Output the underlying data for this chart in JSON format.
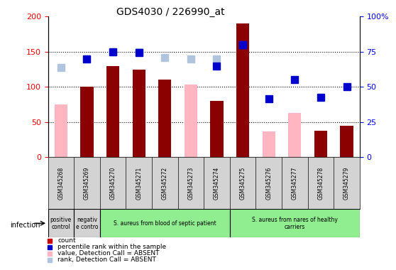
{
  "title": "GDS4030 / 226990_at",
  "samples": [
    "GSM345268",
    "GSM345269",
    "GSM345270",
    "GSM345271",
    "GSM345272",
    "GSM345273",
    "GSM345274",
    "GSM345275",
    "GSM345276",
    "GSM345277",
    "GSM345278",
    "GSM345279"
  ],
  "count_values": [
    null,
    100,
    130,
    125,
    110,
    null,
    80,
    190,
    null,
    null,
    38,
    45
  ],
  "absent_value": [
    75,
    null,
    null,
    null,
    null,
    103,
    null,
    null,
    37,
    63,
    null,
    null
  ],
  "absent_rank": [
    128,
    140,
    150,
    150,
    142,
    140,
    140,
    null,
    null,
    null,
    null,
    null
  ],
  "percentile_rank": [
    null,
    140,
    150,
    149,
    null,
    null,
    130,
    160,
    null,
    null,
    null,
    null
  ],
  "rank_values": [
    null,
    null,
    null,
    null,
    null,
    null,
    null,
    160,
    83,
    110,
    85,
    100
  ],
  "groups": [
    {
      "label": "positive\ncontrol",
      "start": 0,
      "end": 1,
      "color": "#d3d3d3"
    },
    {
      "label": "negativ\ne contro",
      "start": 1,
      "end": 2,
      "color": "#d3d3d3"
    },
    {
      "label": "S. aureus from blood of septic patient",
      "start": 2,
      "end": 7,
      "color": "#90ee90"
    },
    {
      "label": "S. aureus from nares of healthy\ncarriers",
      "start": 7,
      "end": 12,
      "color": "#90ee90"
    }
  ],
  "ylim_left": [
    0,
    200
  ],
  "ylim_right": [
    0,
    100
  ],
  "yticks_left": [
    0,
    50,
    100,
    150,
    200
  ],
  "yticks_right": [
    0,
    25,
    50,
    75,
    100
  ],
  "ytick_labels_left": [
    "0",
    "50",
    "100",
    "150",
    "200"
  ],
  "ytick_labels_right": [
    "0",
    "25",
    "50",
    "75",
    "100%"
  ],
  "color_count": "#8b0000",
  "color_rank": "#0000cd",
  "color_absent_value": "#ffb6c1",
  "color_absent_rank": "#b0c4de",
  "legend_items": [
    {
      "label": "count",
      "color": "#cc0000"
    },
    {
      "label": "percentile rank within the sample",
      "color": "#0000cc"
    },
    {
      "label": "value, Detection Call = ABSENT",
      "color": "#ffb6c1"
    },
    {
      "label": "rank, Detection Call = ABSENT",
      "color": "#b0c4de"
    }
  ]
}
